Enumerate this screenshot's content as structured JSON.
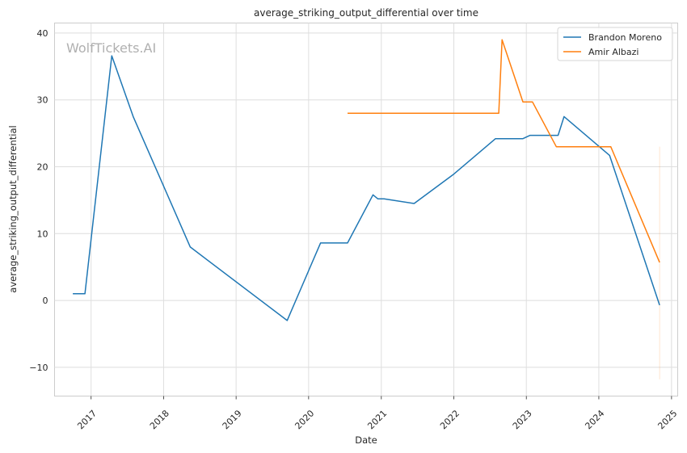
{
  "chart_data": {
    "type": "line",
    "title": "average_striking_output_differential over time",
    "xlabel": "Date",
    "ylabel": "average_striking_output_differential",
    "watermark": "WolfTickets.AI",
    "x_ticks": [
      "2017",
      "2018",
      "2019",
      "2020",
      "2021",
      "2022",
      "2023",
      "2024",
      "2025"
    ],
    "y_ticks": [
      -10,
      0,
      10,
      20,
      30,
      40
    ],
    "xlim": [
      "2016-07-01",
      "2025-02-01"
    ],
    "ylim": [
      -14.3,
      41.5
    ],
    "grid": true,
    "legend_position": "top-right",
    "series": [
      {
        "name": "Brandon Moreno",
        "color": "#1f77b4",
        "points": [
          [
            "2016-10-01",
            1.0
          ],
          [
            "2016-12-01",
            1.0
          ],
          [
            "2017-04-15",
            36.6
          ],
          [
            "2017-08-01",
            27.5
          ],
          [
            "2018-05-15",
            8.0
          ],
          [
            "2019-09-15",
            -3.0
          ],
          [
            "2020-03-01",
            8.6
          ],
          [
            "2020-07-15",
            8.6
          ],
          [
            "2020-11-20",
            15.8
          ],
          [
            "2020-12-15",
            15.2
          ],
          [
            "2021-01-15",
            15.2
          ],
          [
            "2021-06-15",
            14.5
          ],
          [
            "2022-01-01",
            18.9
          ],
          [
            "2022-07-30",
            24.2
          ],
          [
            "2022-12-15",
            24.2
          ],
          [
            "2023-01-20",
            24.7
          ],
          [
            "2023-06-10",
            24.7
          ],
          [
            "2023-07-10",
            27.5
          ],
          [
            "2024-02-24",
            21.7
          ],
          [
            "2024-11-02",
            -0.7
          ]
        ]
      },
      {
        "name": "Amir Albazi",
        "color": "#ff7f0e",
        "points": [
          [
            "2020-07-15",
            28.0
          ],
          [
            "2022-08-15",
            28.0
          ],
          [
            "2022-09-01",
            39.0
          ],
          [
            "2022-12-15",
            29.7
          ],
          [
            "2023-02-01",
            29.7
          ],
          [
            "2023-06-01",
            23.0
          ],
          [
            "2024-03-01",
            23.0
          ],
          [
            "2024-11-02",
            5.7
          ]
        ]
      }
    ],
    "band": {
      "color": "#ff7f0e",
      "x": "2024-11-02",
      "low": -11.8,
      "high": 23.0
    }
  }
}
